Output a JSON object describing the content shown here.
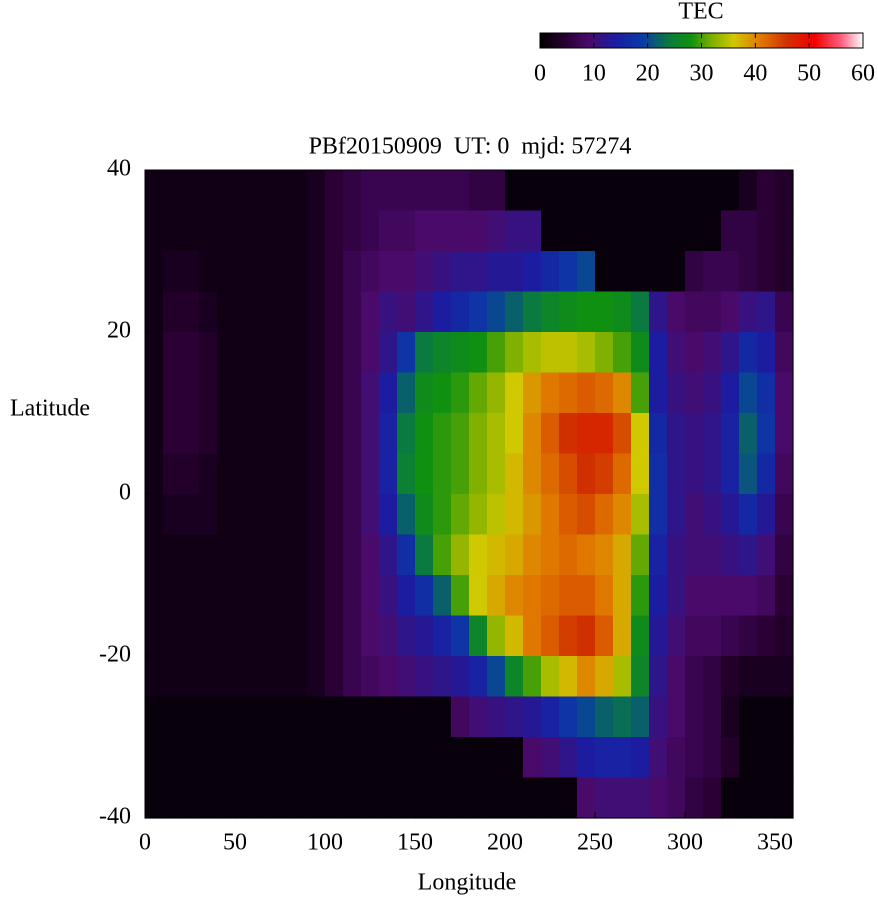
{
  "chart_data": {
    "type": "heatmap",
    "title": "PBf20150909  UT: 0  mjd: 57274",
    "xlabel": "Longitude",
    "ylabel": "Latitude",
    "xlim": [
      0,
      360
    ],
    "xticks": [
      0,
      50,
      100,
      150,
      200,
      250,
      300,
      350
    ],
    "ylim": [
      -40,
      40
    ],
    "yticks": [
      -40,
      -20,
      0,
      20,
      40
    ],
    "x": [
      5,
      15,
      25,
      35,
      45,
      55,
      65,
      75,
      85,
      95,
      105,
      115,
      125,
      135,
      145,
      155,
      165,
      175,
      185,
      195,
      205,
      215,
      225,
      235,
      245,
      255,
      265,
      275,
      285,
      295,
      305,
      315,
      325,
      335,
      345,
      355
    ],
    "y": [
      37.5,
      32.5,
      27.5,
      22.5,
      17.5,
      12.5,
      7.5,
      2.5,
      -2.5,
      -7.5,
      -12.5,
      -17.5,
      -22.5,
      -27.5,
      -32.5,
      -37.5
    ],
    "z": [
      [
        2,
        2,
        2,
        2,
        2,
        2,
        2,
        2,
        2,
        3,
        5,
        6,
        7,
        7,
        7,
        7,
        7,
        7,
        6,
        6,
        1,
        1,
        1,
        1,
        1,
        1,
        1,
        1,
        1,
        1,
        1,
        1,
        1,
        3,
        5,
        4
      ],
      [
        2,
        2,
        2,
        2,
        2,
        2,
        2,
        2,
        2,
        3,
        5,
        6,
        7,
        8,
        8,
        9,
        9,
        9,
        9,
        10,
        11,
        11,
        1,
        1,
        1,
        1,
        1,
        1,
        1,
        1,
        1,
        1,
        6,
        6,
        5,
        4
      ],
      [
        2,
        3,
        3,
        2,
        2,
        2,
        2,
        2,
        2,
        3,
        5,
        7,
        8,
        9,
        9,
        10,
        11,
        12,
        12,
        13,
        13,
        14,
        16,
        18,
        20,
        1,
        1,
        1,
        1,
        1,
        6,
        7,
        7,
        6,
        5,
        4
      ],
      [
        2,
        4,
        4,
        3,
        2,
        2,
        2,
        2,
        2,
        3,
        5,
        7,
        9,
        11,
        10,
        12,
        14,
        16,
        18,
        20,
        22,
        24,
        26,
        27,
        28,
        28,
        27,
        24,
        12,
        9,
        8,
        8,
        9,
        11,
        12,
        7
      ],
      [
        2,
        5,
        5,
        4,
        2,
        2,
        2,
        2,
        2,
        3,
        5,
        7,
        9,
        12,
        18,
        24,
        26,
        27,
        28,
        30,
        32,
        34,
        35,
        35,
        34,
        32,
        30,
        27,
        14,
        10,
        9,
        10,
        12,
        16,
        14,
        8
      ],
      [
        2,
        5,
        5,
        4,
        2,
        2,
        2,
        2,
        2,
        3,
        5,
        7,
        10,
        14,
        22,
        27,
        28,
        29,
        31,
        33,
        36,
        39,
        41,
        42,
        43,
        42,
        40,
        30,
        14,
        11,
        10,
        11,
        14,
        20,
        17,
        9
      ],
      [
        2,
        5,
        5,
        4,
        2,
        2,
        2,
        2,
        2,
        3,
        5,
        7,
        10,
        15,
        24,
        28,
        29,
        30,
        32,
        34,
        36,
        40,
        43,
        46,
        47,
        47,
        44,
        36,
        16,
        12,
        11,
        12,
        15,
        22,
        18,
        9
      ],
      [
        2,
        4,
        4,
        3,
        2,
        2,
        2,
        2,
        2,
        3,
        5,
        7,
        10,
        15,
        25,
        28,
        29,
        30,
        32,
        34,
        37,
        40,
        42,
        44,
        46,
        45,
        42,
        36,
        17,
        12,
        11,
        12,
        15,
        21,
        16,
        8
      ],
      [
        2,
        3,
        3,
        3,
        2,
        2,
        2,
        2,
        2,
        3,
        5,
        7,
        10,
        14,
        22,
        27,
        29,
        31,
        33,
        35,
        37,
        39,
        41,
        43,
        44,
        42,
        40,
        34,
        17,
        12,
        10,
        11,
        13,
        16,
        13,
        7
      ],
      [
        2,
        2,
        2,
        2,
        2,
        2,
        2,
        2,
        2,
        3,
        5,
        7,
        9,
        12,
        17,
        24,
        30,
        33,
        36,
        37,
        38,
        40,
        41,
        42,
        41,
        40,
        38,
        31,
        15,
        11,
        10,
        10,
        11,
        12,
        10,
        6
      ],
      [
        2,
        2,
        2,
        2,
        2,
        2,
        2,
        2,
        2,
        3,
        5,
        7,
        9,
        11,
        14,
        17,
        22,
        30,
        36,
        38,
        40,
        41,
        42,
        43,
        43,
        41,
        38,
        29,
        14,
        11,
        9,
        9,
        9,
        9,
        8,
        5
      ],
      [
        2,
        2,
        2,
        2,
        2,
        2,
        2,
        2,
        2,
        3,
        5,
        7,
        9,
        10,
        12,
        13,
        15,
        18,
        26,
        33,
        37,
        41,
        43,
        45,
        46,
        43,
        38,
        27,
        13,
        10,
        8,
        8,
        7,
        6,
        5,
        4
      ],
      [
        2,
        2,
        2,
        2,
        2,
        2,
        2,
        2,
        2,
        3,
        5,
        7,
        8,
        9,
        10,
        11,
        12,
        13,
        15,
        20,
        26,
        30,
        34,
        37,
        40,
        38,
        34,
        26,
        12,
        9,
        7,
        6,
        4,
        3,
        3,
        3
      ],
      [
        1,
        1,
        1,
        1,
        1,
        1,
        1,
        1,
        1,
        1,
        1,
        1,
        1,
        1,
        1,
        1,
        1,
        8,
        10,
        11,
        12,
        13,
        15,
        18,
        20,
        22,
        23,
        22,
        11,
        9,
        7,
        6,
        3,
        1,
        1,
        1
      ],
      [
        1,
        1,
        1,
        1,
        1,
        1,
        1,
        1,
        1,
        1,
        1,
        1,
        1,
        1,
        1,
        1,
        1,
        1,
        1,
        1,
        1,
        9,
        10,
        12,
        14,
        15,
        15,
        14,
        10,
        8,
        7,
        6,
        4,
        1,
        1,
        1
      ],
      [
        1,
        1,
        1,
        1,
        1,
        1,
        1,
        1,
        1,
        1,
        1,
        1,
        1,
        1,
        1,
        1,
        1,
        1,
        1,
        1,
        1,
        1,
        1,
        1,
        9,
        10,
        10,
        10,
        9,
        8,
        6,
        5,
        1,
        1,
        1,
        1
      ]
    ],
    "colorbar": {
      "label": "TEC",
      "lim": [
        0,
        60
      ],
      "ticks": [
        0,
        10,
        20,
        30,
        40,
        50,
        60
      ]
    },
    "colorscale": [
      {
        "value": 0,
        "color": "#000000"
      },
      {
        "value": 5,
        "color": "#2a0035"
      },
      {
        "value": 9,
        "color": "#4a0a6a"
      },
      {
        "value": 14,
        "color": "#1c1ca0"
      },
      {
        "value": 19,
        "color": "#0a3aa8"
      },
      {
        "value": 24,
        "color": "#0a7a40"
      },
      {
        "value": 28,
        "color": "#109010"
      },
      {
        "value": 32,
        "color": "#80b000"
      },
      {
        "value": 36,
        "color": "#d0c800"
      },
      {
        "value": 41,
        "color": "#e07800"
      },
      {
        "value": 46,
        "color": "#d03000"
      },
      {
        "value": 51,
        "color": "#f00000"
      },
      {
        "value": 56,
        "color": "#ff6080"
      },
      {
        "value": 60,
        "color": "#ffffff"
      }
    ]
  }
}
